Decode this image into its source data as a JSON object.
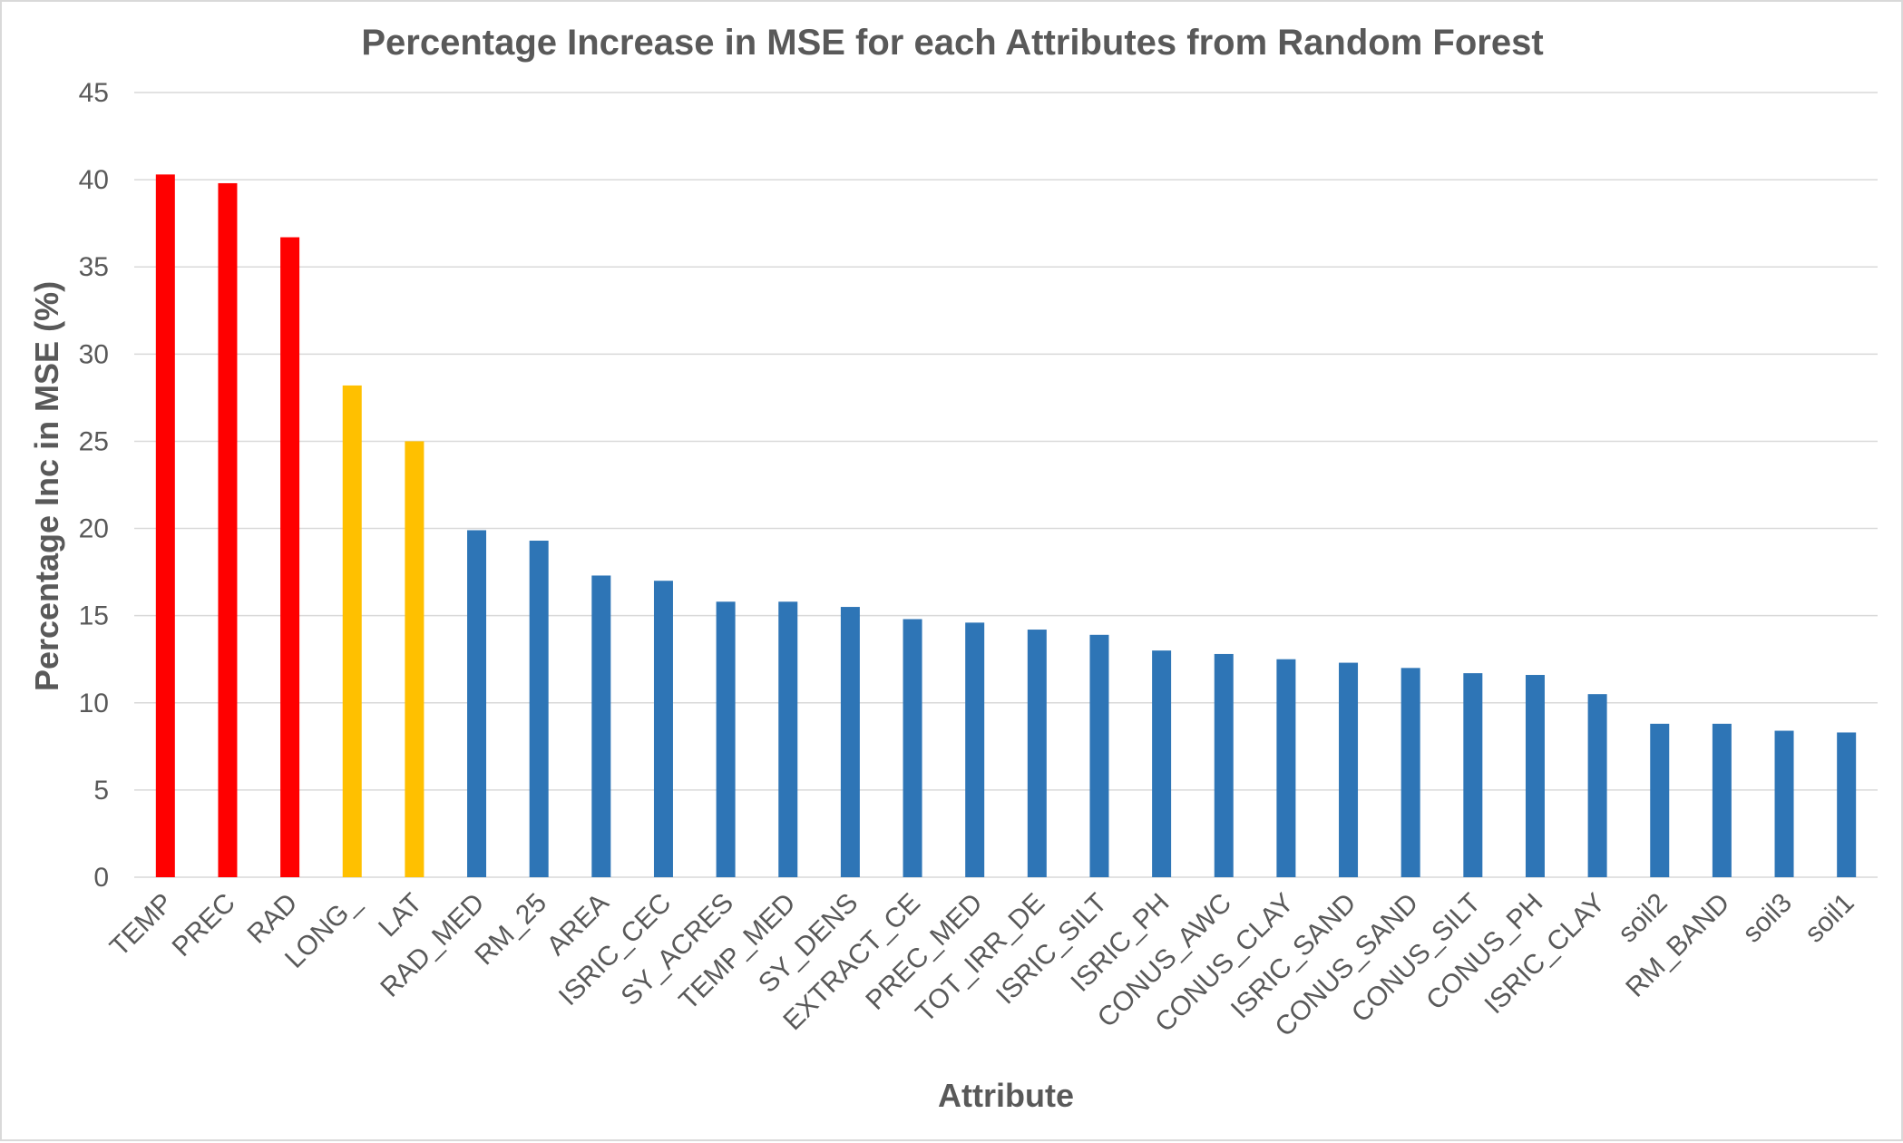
{
  "chart_data": {
    "type": "bar",
    "title": "Percentage Increase in MSE for each Attributes from Random Forest",
    "xlabel": "Attribute",
    "ylabel": "Percentage Inc in MSE (%)",
    "ylim": [
      0,
      45
    ],
    "yticks": [
      0,
      5,
      10,
      15,
      20,
      25,
      30,
      35,
      40,
      45
    ],
    "grid": true,
    "legend": "none",
    "colors": {
      "top": "#ff0000",
      "mid": "#ffc000",
      "rest": "#2e75b6"
    },
    "categories": [
      "TEMP",
      "PREC",
      "RAD",
      "LONG_",
      "LAT",
      "RAD_MED",
      "RM_25",
      "AREA",
      "ISRIC_CEC",
      "SY_ACRES",
      "TEMP_MED",
      "SY_DENS",
      "EXTRACT_CE",
      "PREC_MED",
      "TOT_IRR_DE",
      "ISRIC_SILT",
      "ISRIC_PH",
      "CONUS_AWC",
      "CONUS_CLAY",
      "ISRIC_SAND",
      "CONUS_SAND",
      "CONUS_SILT",
      "CONUS_PH",
      "ISRIC_CLAY",
      "soil2",
      "RM_BAND",
      "soil3",
      "soil1"
    ],
    "values": [
      40.3,
      39.8,
      36.7,
      28.2,
      25.0,
      19.9,
      19.3,
      17.3,
      17.0,
      15.8,
      15.8,
      15.5,
      14.8,
      14.6,
      14.2,
      13.9,
      13.0,
      12.8,
      12.5,
      12.3,
      12.0,
      11.7,
      11.6,
      10.5,
      8.8,
      8.8,
      8.4,
      8.3
    ],
    "bar_color_groups": [
      "top",
      "top",
      "top",
      "mid",
      "mid",
      "rest",
      "rest",
      "rest",
      "rest",
      "rest",
      "rest",
      "rest",
      "rest",
      "rest",
      "rest",
      "rest",
      "rest",
      "rest",
      "rest",
      "rest",
      "rest",
      "rest",
      "rest",
      "rest",
      "rest",
      "rest",
      "rest",
      "rest"
    ]
  }
}
